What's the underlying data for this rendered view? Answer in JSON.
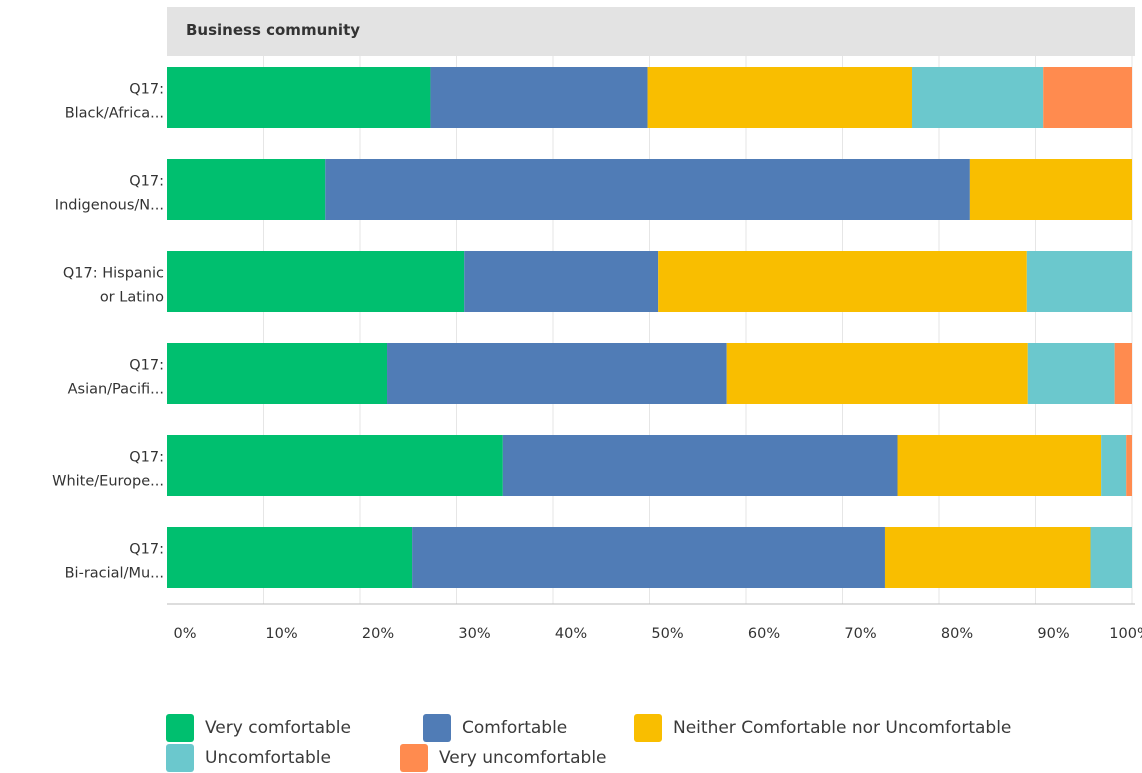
{
  "chart_data": {
    "type": "bar",
    "orientation": "horizontal",
    "stacked": true,
    "title": "Business community",
    "categories": [
      "Q17: Black/Africa...",
      "Q17: Indigenous/N...",
      "Q17: Hispanic or Latino",
      "Q17: Asian/Pacifi...",
      "Q17: White/Europe...",
      "Q17: Bi-racial/Mu..."
    ],
    "category_lines": [
      [
        "Q17:",
        "Black/Africa..."
      ],
      [
        "Q17:",
        "Indigenous/N..."
      ],
      [
        "Q17: Hispanic",
        "or Latino"
      ],
      [
        "Q17:",
        "Asian/Pacifi..."
      ],
      [
        "Q17:",
        "White/Europe..."
      ],
      [
        "Q17:",
        "Bi-racial/Mu..."
      ]
    ],
    "series": [
      {
        "name": "Very comfortable",
        "color": "#00BF6F",
        "values": [
          27.3,
          16.4,
          30.8,
          22.8,
          34.8,
          25.4
        ]
      },
      {
        "name": "Comfortable",
        "color": "#507CB6",
        "values": [
          22.5,
          66.8,
          20.1,
          35.2,
          40.9,
          49.0
        ]
      },
      {
        "name": "Neither Comfortable nor Uncomfortable",
        "color": "#F9BE00",
        "values": [
          27.4,
          16.8,
          38.2,
          31.2,
          21.1,
          21.3
        ]
      },
      {
        "name": "Uncomfortable",
        "color": "#6BC8CD",
        "values": [
          13.6,
          0,
          10.9,
          9.0,
          2.6,
          4.3
        ]
      },
      {
        "name": "Very uncomfortable",
        "color": "#FF8B4F",
        "values": [
          9.2,
          0,
          0,
          1.8,
          0.6,
          0
        ]
      }
    ],
    "xlim": [
      0,
      100
    ],
    "x_ticks": [
      "0%",
      "10%",
      "20%",
      "30%",
      "40%",
      "50%",
      "60%",
      "70%",
      "80%",
      "90%",
      "100%"
    ],
    "grid": true,
    "legend_position": "bottom"
  }
}
